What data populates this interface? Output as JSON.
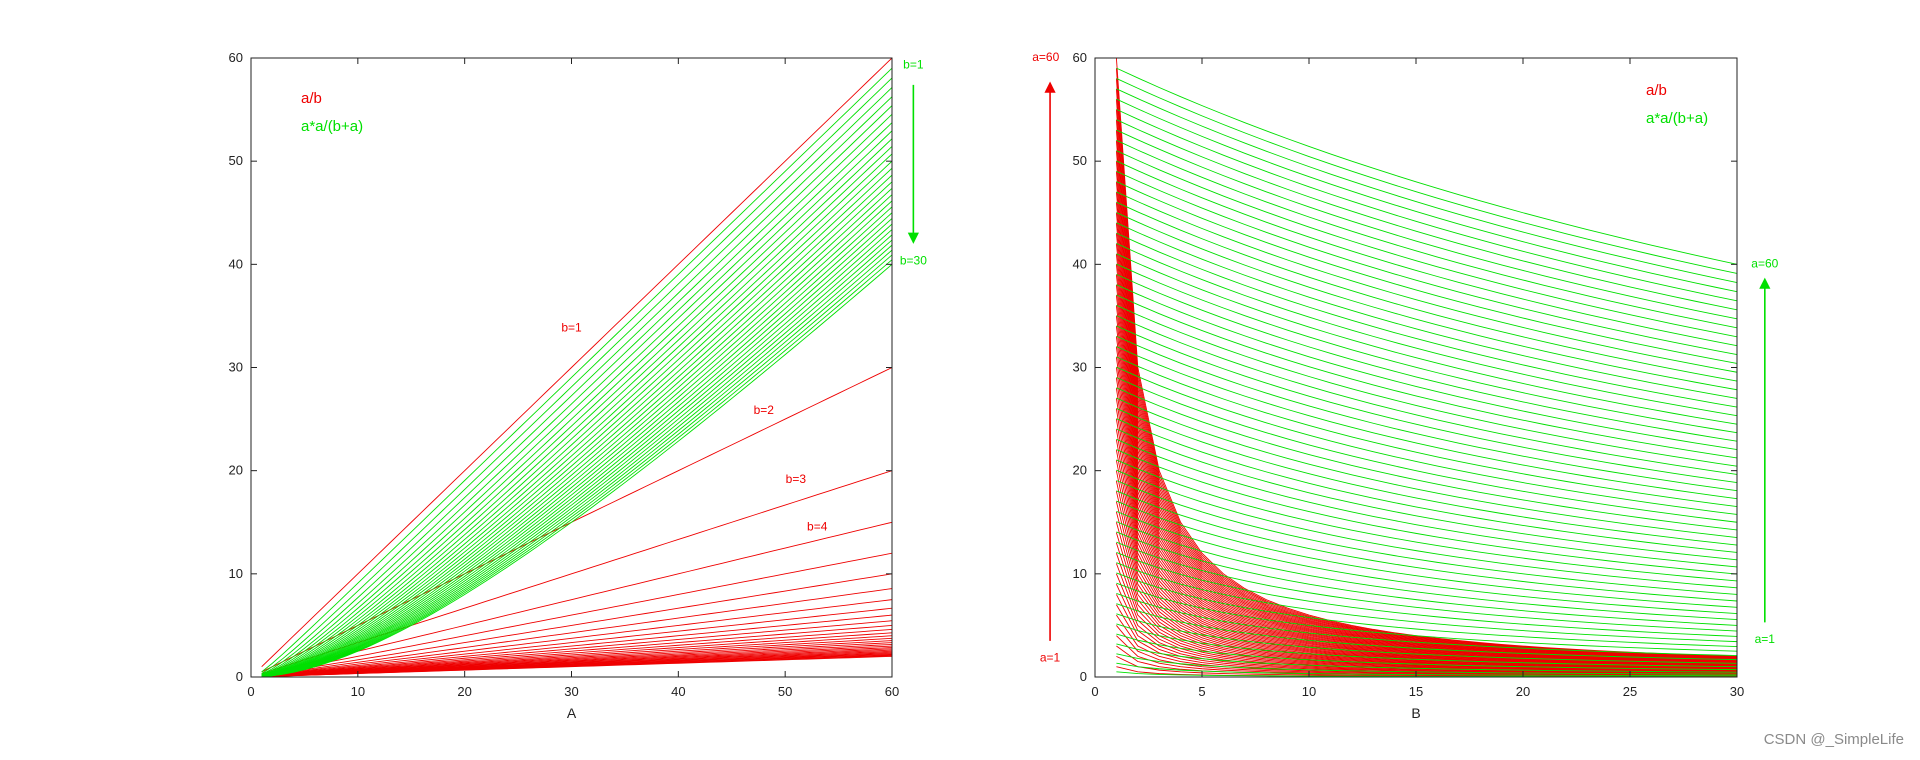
{
  "colors": {
    "ratio": "#ee0000",
    "mix": "#00e000",
    "axis": "#222222"
  },
  "chart_data": [
    {
      "type": "line",
      "xlabel": "A",
      "xlim": [
        0,
        60
      ],
      "ylim": [
        0,
        60
      ],
      "xticks": [
        0,
        10,
        20,
        30,
        40,
        50,
        60
      ],
      "yticks": [
        0,
        10,
        20,
        30,
        40,
        50,
        60
      ],
      "legend": [
        "a/b",
        "a*a/(b+a)"
      ],
      "legend_position": "top-left",
      "families": [
        {
          "name": "a/b",
          "color": "#ee0000",
          "formula": "a/b",
          "x": "a",
          "x_range": [
            1,
            60
          ],
          "param": "b",
          "param_range": [
            1,
            30
          ]
        },
        {
          "name": "a*a/(b+a)",
          "color": "#00e000",
          "formula": "a*a/(b+a)",
          "x": "a",
          "x_range": [
            1,
            60
          ],
          "param": "b",
          "param_range": [
            1,
            30
          ]
        }
      ],
      "annotations": [
        {
          "text": "b=1",
          "color": "#ee0000",
          "x": 30,
          "y": 33.5
        },
        {
          "text": "b=2",
          "color": "#ee0000",
          "x": 48,
          "y": 25.5
        },
        {
          "text": "b=3",
          "color": "#ee0000",
          "x": 51,
          "y": 18.8
        },
        {
          "text": "b=4",
          "color": "#ee0000",
          "x": 53,
          "y": 14.2
        },
        {
          "text": "b=1",
          "color": "#00e000",
          "x": 62,
          "y": 59
        },
        {
          "text": "b=30",
          "color": "#00e000",
          "x": 62,
          "y": 40
        }
      ],
      "arrows": [
        {
          "color": "#00e000",
          "x": 62,
          "from_y": 57.4,
          "to_y": 42.2
        }
      ]
    },
    {
      "type": "line",
      "xlabel": "B",
      "xlim": [
        0,
        30
      ],
      "ylim": [
        0,
        60
      ],
      "xticks": [
        0,
        5,
        10,
        15,
        20,
        25,
        30
      ],
      "yticks": [
        0,
        10,
        20,
        30,
        40,
        50,
        60
      ],
      "legend": [
        "a/b",
        "a*a/(b+a)"
      ],
      "legend_position": "top-right",
      "families": [
        {
          "name": "a/b",
          "color": "#ee0000",
          "formula": "a/b",
          "x": "b",
          "x_range": [
            1,
            30
          ],
          "param": "a",
          "param_range": [
            1,
            60
          ]
        },
        {
          "name": "a*a/(b+a)",
          "color": "#00e000",
          "formula": "a*a/(b+a)",
          "x": "b",
          "x_range": [
            1,
            30
          ],
          "param": "a",
          "param_range": [
            1,
            60
          ]
        }
      ],
      "annotations": [
        {
          "text": "a=60",
          "color": "#ee0000",
          "x": -2.3,
          "y": 59.7
        },
        {
          "text": "a=1",
          "color": "#ee0000",
          "x": -2.1,
          "y": 1.5
        },
        {
          "text": "a=60",
          "color": "#00e000",
          "x": 31.3,
          "y": 39.7
        },
        {
          "text": "a=1",
          "color": "#00e000",
          "x": 31.3,
          "y": 3.3
        }
      ],
      "arrows": [
        {
          "color": "#ee0000",
          "x": -2.1,
          "from_y": 3.5,
          "to_y": 57.5
        },
        {
          "color": "#00e000",
          "x": 31.3,
          "from_y": 5.3,
          "to_y": 38.5
        }
      ]
    }
  ],
  "watermark": "CSDN @_SimpleLife"
}
